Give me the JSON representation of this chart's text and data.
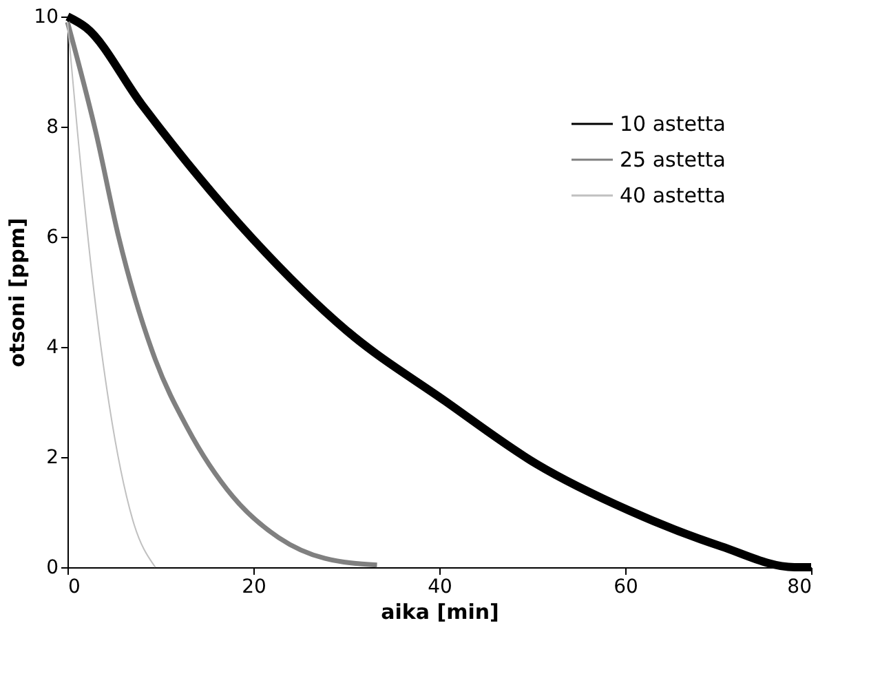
{
  "chart_data": {
    "type": "line",
    "xlabel": "aika [min]",
    "ylabel": "otsoni [ppm]",
    "xlim": [
      0,
      80
    ],
    "xticks": [
      0,
      20,
      40,
      60,
      80
    ],
    "ylim": [
      0,
      10
    ],
    "yticks": [
      0,
      2,
      4,
      6,
      8,
      10
    ],
    "grid": false,
    "legend": "top right",
    "marker": "none",
    "line_style": "solid",
    "series": [
      {
        "name": "10 astetta",
        "color": "#000000",
        "x": [
          0,
          2,
          8,
          20,
          30,
          40.6,
          50.5,
          60.4,
          70.3,
          78.2,
          80
        ],
        "values": [
          10,
          9.8,
          8.4,
          5.95,
          4.3,
          3.02,
          1.87,
          1.03,
          0.38,
          0,
          0
        ]
      },
      {
        "name": "25 astetta",
        "color": "#808080",
        "x": [
          0,
          3.05,
          5.5,
          9.45,
          12.9,
          17.8,
          22.7,
          27.7,
          33.3
        ],
        "values": [
          9.9,
          7.9,
          6.0,
          3.77,
          2.53,
          1.28,
          0.54,
          0.16,
          0.04
        ]
      },
      {
        "name": "40 astetta",
        "color": "#c0c0c0",
        "x": [
          0,
          1.08,
          2.56,
          4.5,
          7.0,
          9.45
        ],
        "values": [
          9.9,
          7.9,
          5.43,
          2.94,
          0.87,
          0
        ]
      }
    ]
  }
}
